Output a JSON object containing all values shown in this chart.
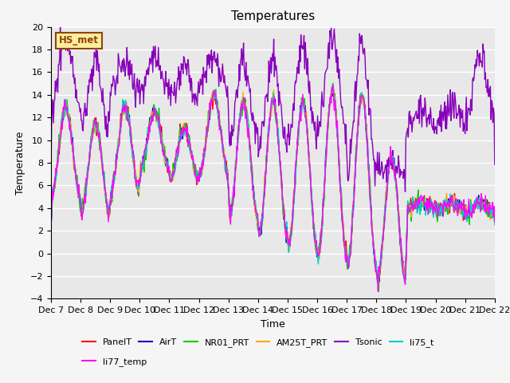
{
  "title": "Temperatures",
  "xlabel": "Time",
  "ylabel": "Temperature",
  "ylim": [
    -4,
    20
  ],
  "xtick_labels": [
    "Dec 7",
    "Dec 8",
    "Dec 9",
    "Dec 10",
    "Dec 11",
    "Dec 12",
    "Dec 13",
    "Dec 14",
    "Dec 15",
    "Dec 16",
    "Dec 17",
    "Dec 18",
    "Dec 19",
    "Dec 20",
    "Dec 21",
    "Dec 22"
  ],
  "series_order": [
    "PanelT",
    "AirT",
    "NR01_PRT",
    "AM25T_PRT",
    "Tsonic",
    "li75_t",
    "li77_temp"
  ],
  "series": {
    "PanelT": {
      "color": "#ff0000",
      "lw": 1.0
    },
    "AirT": {
      "color": "#0000cc",
      "lw": 1.0
    },
    "NR01_PRT": {
      "color": "#00cc00",
      "lw": 1.0
    },
    "AM25T_PRT": {
      "color": "#ffaa00",
      "lw": 1.0
    },
    "Tsonic": {
      "color": "#8800bb",
      "lw": 1.0
    },
    "li75_t": {
      "color": "#00cccc",
      "lw": 1.0
    },
    "li77_temp": {
      "color": "#ff00ff",
      "lw": 1.0
    }
  },
  "annotation_text": "HS_met",
  "annotation_color": "#8b4513",
  "annotation_bg": "#ffee99",
  "annotation_edge": "#8b4513",
  "plot_bg_color": "#e8e8e8",
  "fig_bg_color": "#f5f5f5",
  "grid_color": "#ffffff",
  "base_day_peaks": [
    13.0,
    11.5,
    13.0,
    12.5,
    11.0,
    14.0,
    13.5,
    13.5,
    13.5,
    14.5,
    14.0,
    8.5,
    4.5,
    4.5,
    4.5
  ],
  "base_night_troughs": [
    5.0,
    3.5,
    5.5,
    7.5,
    6.5,
    7.0,
    3.0,
    1.5,
    0.5,
    -0.2,
    -1.0,
    -2.5,
    4.0,
    3.8,
    3.5
  ],
  "tsonic_day_peaks": [
    19.0,
    17.0,
    17.0,
    17.5,
    16.5,
    17.5,
    17.0,
    17.0,
    18.5,
    19.0,
    18.5,
    7.5,
    13.0,
    13.0,
    17.5
  ],
  "tsonic_night_troughs": [
    13.0,
    11.0,
    14.5,
    14.5,
    13.5,
    15.0,
    10.0,
    9.5,
    10.0,
    11.0,
    7.5,
    7.5,
    11.0,
    11.5,
    12.0
  ],
  "n_days": 15,
  "pts_per_day": 48,
  "noise_scale": 0.35,
  "tsonic_noise_scale": 0.7
}
